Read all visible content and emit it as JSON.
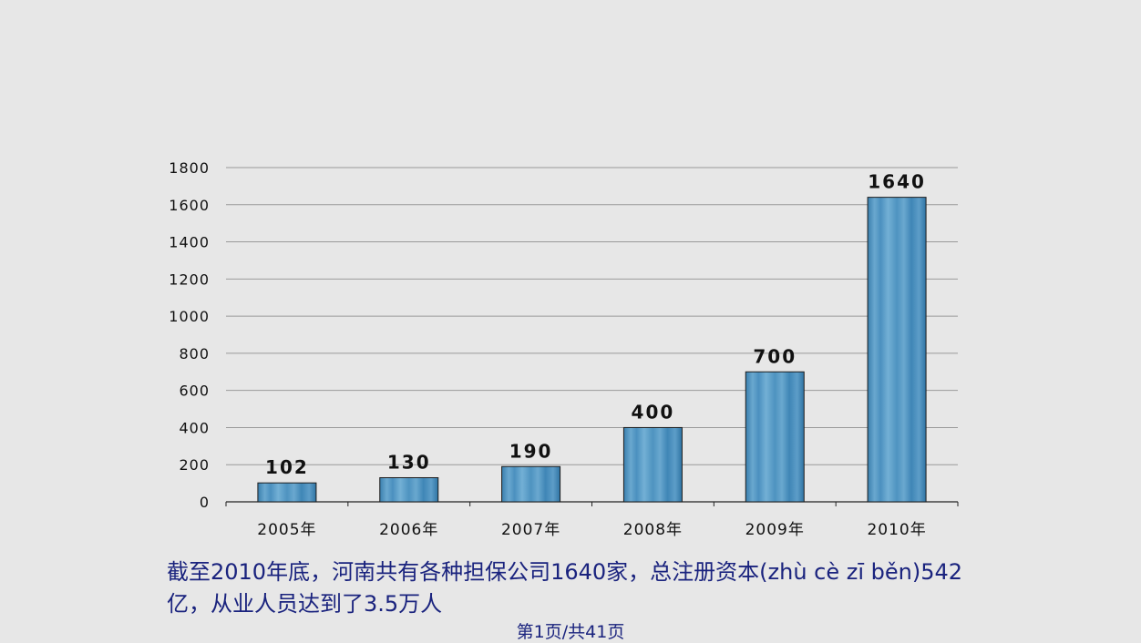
{
  "chart_data": {
    "type": "bar",
    "categories": [
      "2005年",
      "2006年",
      "2007年",
      "2008年",
      "2009年",
      "2010年"
    ],
    "values": [
      102,
      130,
      190,
      400,
      700,
      1640
    ],
    "data_labels": [
      "102",
      "130",
      "190",
      "400",
      "700",
      "1640"
    ],
    "yticks": [
      0,
      200,
      400,
      600,
      800,
      1000,
      1200,
      1400,
      1600,
      1800
    ],
    "ylim": [
      0,
      1800
    ],
    "grid": true,
    "bar_color": "#4a8fbe"
  },
  "caption": "截至2010年底，河南共有各种担保公司1640家，总注册资本(zhù cè zī běn)542亿，从业人员达到了3.5万人",
  "footer": "第1页/共41页"
}
